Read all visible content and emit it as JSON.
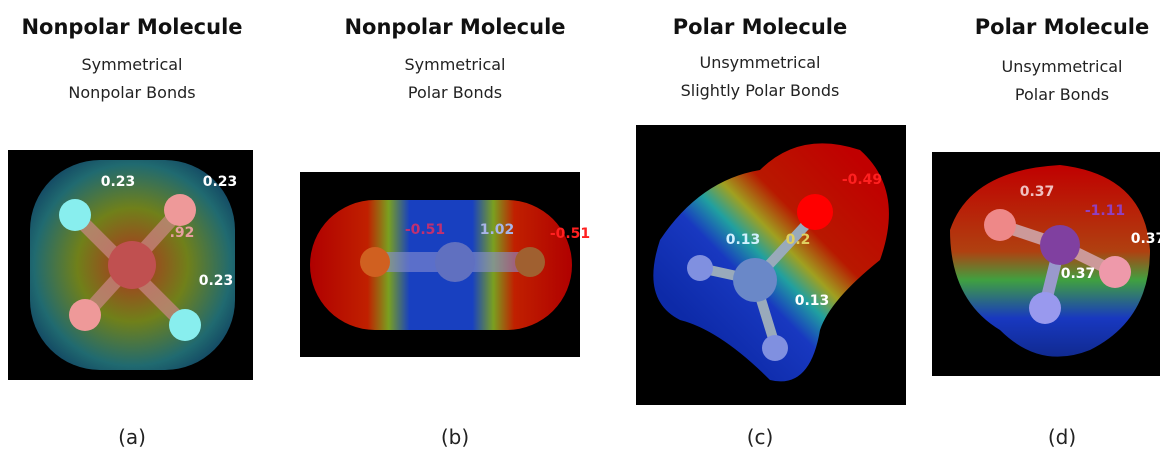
{
  "panels": [
    {
      "title": "Nonpolar Molecule",
      "description": [
        "Symmetrical",
        "Nonpolar Bonds"
      ],
      "charges": [
        "0.23",
        "0.23",
        ".92",
        "0.23"
      ],
      "caption": "(a)"
    },
    {
      "title": "Nonpolar Molecule",
      "description": [
        "Symmetrical",
        "Polar Bonds"
      ],
      "charges": [
        "-0.51",
        "1.02",
        "-0.51"
      ],
      "caption": "(b)"
    },
    {
      "title": "Polar Molecule",
      "description": [
        "Unsymmetrical",
        "Slightly Polar Bonds"
      ],
      "charges": [
        "-0.49",
        "0.13",
        "0.2",
        "0.13"
      ],
      "caption": "(c)"
    },
    {
      "title": "Polar Molecule",
      "description": [
        "Unsymmetrical",
        "Polar Bonds"
      ],
      "charges": [
        "0.37",
        "-1.11",
        "0.37",
        "0.37"
      ],
      "caption": "(d)"
    }
  ]
}
